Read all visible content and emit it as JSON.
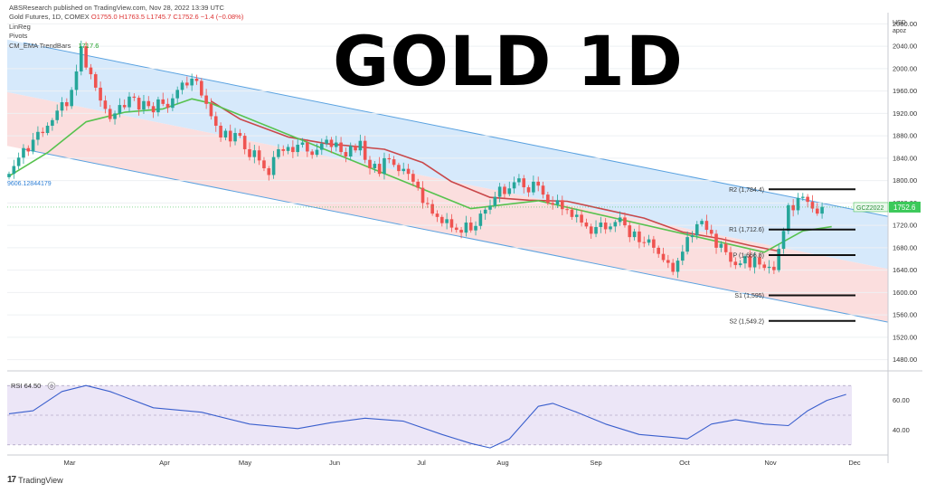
{
  "header": {
    "publisher": "ABSResearch published on TradingView.com, Nov 28, 2022 13:39 UTC",
    "symbol_line": "Gold Futures, 1D, COMEX",
    "ohlc": "O1755.0 H1763.5 L1745.7 C1752.6 −1.4 (−0.08%)",
    "indicators": [
      "LinReg",
      "Pivots"
    ],
    "ema_label": "CM_EMA TrendBars",
    "ema_value": "1717.6",
    "big_title": "GOLD 1D",
    "currency": [
      "USD",
      "apoz"
    ],
    "watermark": "TradingView"
  },
  "colors": {
    "up": "#26a69a",
    "down": "#ef5350",
    "channel_upper_fill": "#d6e9fb",
    "channel_lower_fill": "#fbdede",
    "channel_line": "#5aa2e0",
    "red_line": "#c9484a",
    "ema_line": "#57c24e",
    "rsi_line": "#3a5fcd",
    "rsi_fill": "#ece6f7",
    "price_tag": "#3cc95a"
  },
  "chart_data": [
    {
      "type": "candlestick",
      "title": "",
      "x_ticks": [
        "Mar",
        "Apr",
        "May",
        "Jun",
        "Jul",
        "Aug",
        "Sep",
        "Oct",
        "Nov",
        "Dec"
      ],
      "y_ticks": [
        1480,
        1520,
        1560,
        1600,
        1640,
        1680,
        1720,
        1760,
        1800,
        1840,
        1880,
        1920,
        1960,
        2000,
        2040,
        2080
      ],
      "ylim": [
        1460,
        2100
      ],
      "closes": [
        1812,
        1826,
        1841,
        1858,
        1852,
        1873,
        1887,
        1885,
        1898,
        1908,
        1925,
        1940,
        1933,
        1962,
        1995,
        2040,
        2002,
        1990,
        1966,
        1943,
        1928,
        1910,
        1920,
        1935,
        1931,
        1950,
        1948,
        1927,
        1942,
        1933,
        1922,
        1945,
        1937,
        1930,
        1947,
        1962,
        1975,
        1970,
        1982,
        1978,
        1952,
        1937,
        1915,
        1898,
        1877,
        1889,
        1870,
        1885,
        1880,
        1856,
        1842,
        1854,
        1836,
        1822,
        1810,
        1842,
        1856,
        1853,
        1860,
        1851,
        1864,
        1868,
        1852,
        1846,
        1855,
        1866,
        1873,
        1860,
        1868,
        1851,
        1843,
        1862,
        1854,
        1871,
        1837,
        1822,
        1830,
        1812,
        1840,
        1838,
        1828,
        1817,
        1821,
        1812,
        1798,
        1787,
        1760,
        1758,
        1741,
        1735,
        1724,
        1731,
        1716,
        1712,
        1707,
        1725,
        1711,
        1719,
        1741,
        1748,
        1755,
        1771,
        1789,
        1776,
        1786,
        1797,
        1804,
        1788,
        1779,
        1798,
        1791,
        1775,
        1760,
        1757,
        1765,
        1749,
        1748,
        1735,
        1739,
        1725,
        1718,
        1705,
        1717,
        1725,
        1713,
        1718,
        1726,
        1734,
        1720,
        1699,
        1709,
        1690,
        1689,
        1695,
        1680,
        1669,
        1658,
        1653,
        1637,
        1657,
        1673,
        1699,
        1702,
        1722,
        1728,
        1712,
        1705,
        1680,
        1687,
        1672,
        1655,
        1649,
        1652,
        1665,
        1645,
        1663,
        1650,
        1644,
        1646,
        1640,
        1678,
        1710,
        1756,
        1747,
        1769,
        1771,
        1762,
        1750,
        1741,
        1753
      ],
      "ema": [
        {
          "i": 0,
          "v": 1808
        },
        {
          "i": 8,
          "v": 1850
        },
        {
          "i": 16,
          "v": 1905
        },
        {
          "i": 24,
          "v": 1922
        },
        {
          "i": 32,
          "v": 1928
        },
        {
          "i": 38,
          "v": 1946
        },
        {
          "i": 42,
          "v": 1938
        },
        {
          "i": 96,
          "v": 1750
        },
        {
          "i": 104,
          "v": 1758
        },
        {
          "i": 110,
          "v": 1764
        },
        {
          "i": 157,
          "v": 1672
        },
        {
          "i": 165,
          "v": 1710
        },
        {
          "i": 171,
          "v": 1717.6
        }
      ],
      "red_line": [
        {
          "i": 42,
          "v": 1942
        },
        {
          "i": 48,
          "v": 1910
        },
        {
          "i": 58,
          "v": 1878
        },
        {
          "i": 66,
          "v": 1866
        },
        {
          "i": 78,
          "v": 1856
        },
        {
          "i": 86,
          "v": 1832
        },
        {
          "i": 92,
          "v": 1798
        },
        {
          "i": 100,
          "v": 1770
        },
        {
          "i": 108,
          "v": 1765
        },
        {
          "i": 116,
          "v": 1763
        },
        {
          "i": 124,
          "v": 1748
        },
        {
          "i": 132,
          "v": 1733
        },
        {
          "i": 140,
          "v": 1708
        },
        {
          "i": 148,
          "v": 1696
        },
        {
          "i": 154,
          "v": 1684
        },
        {
          "i": 160,
          "v": 1674
        }
      ],
      "channel": {
        "upper": [
          2052,
          1736
        ],
        "middle": [
          1958,
          1642
        ],
        "lower": [
          1862,
          1547
        ]
      },
      "channel_start_label": "9606.12844179",
      "pivots": [
        {
          "label": "R2 (1,784.4)",
          "value": 1784.4
        },
        {
          "label": "R1 (1,712.6)",
          "value": 1712.6
        },
        {
          "label": "P (1,666.8)",
          "value": 1666.8
        },
        {
          "label": "S1 (1,595)",
          "value": 1595
        },
        {
          "label": "S2 (1,549.2)",
          "value": 1549.2
        }
      ],
      "last_price": {
        "symbol": "GCZ2022",
        "value": "1752.6"
      }
    },
    {
      "type": "line",
      "title": "",
      "label": "RSI",
      "value": "64.50",
      "value_badge": "0",
      "y_ticks": [
        40,
        60
      ],
      "bands": [
        30,
        50,
        70
      ],
      "ylim": [
        25,
        75
      ],
      "values": [
        {
          "i": 0,
          "v": 51
        },
        {
          "i": 5,
          "v": 53
        },
        {
          "i": 11,
          "v": 66
        },
        {
          "i": 16,
          "v": 70
        },
        {
          "i": 21,
          "v": 66
        },
        {
          "i": 30,
          "v": 55
        },
        {
          "i": 40,
          "v": 52
        },
        {
          "i": 50,
          "v": 44
        },
        {
          "i": 60,
          "v": 41
        },
        {
          "i": 67,
          "v": 45
        },
        {
          "i": 74,
          "v": 48
        },
        {
          "i": 82,
          "v": 46
        },
        {
          "i": 90,
          "v": 37
        },
        {
          "i": 96,
          "v": 31
        },
        {
          "i": 100,
          "v": 28
        },
        {
          "i": 104,
          "v": 34
        },
        {
          "i": 110,
          "v": 56
        },
        {
          "i": 113,
          "v": 58
        },
        {
          "i": 118,
          "v": 52
        },
        {
          "i": 124,
          "v": 44
        },
        {
          "i": 131,
          "v": 37
        },
        {
          "i": 138,
          "v": 35
        },
        {
          "i": 141,
          "v": 34
        },
        {
          "i": 146,
          "v": 44
        },
        {
          "i": 151,
          "v": 47
        },
        {
          "i": 157,
          "v": 44
        },
        {
          "i": 162,
          "v": 43
        },
        {
          "i": 166,
          "v": 53
        },
        {
          "i": 170,
          "v": 60
        },
        {
          "i": 174,
          "v": 64
        }
      ]
    }
  ]
}
